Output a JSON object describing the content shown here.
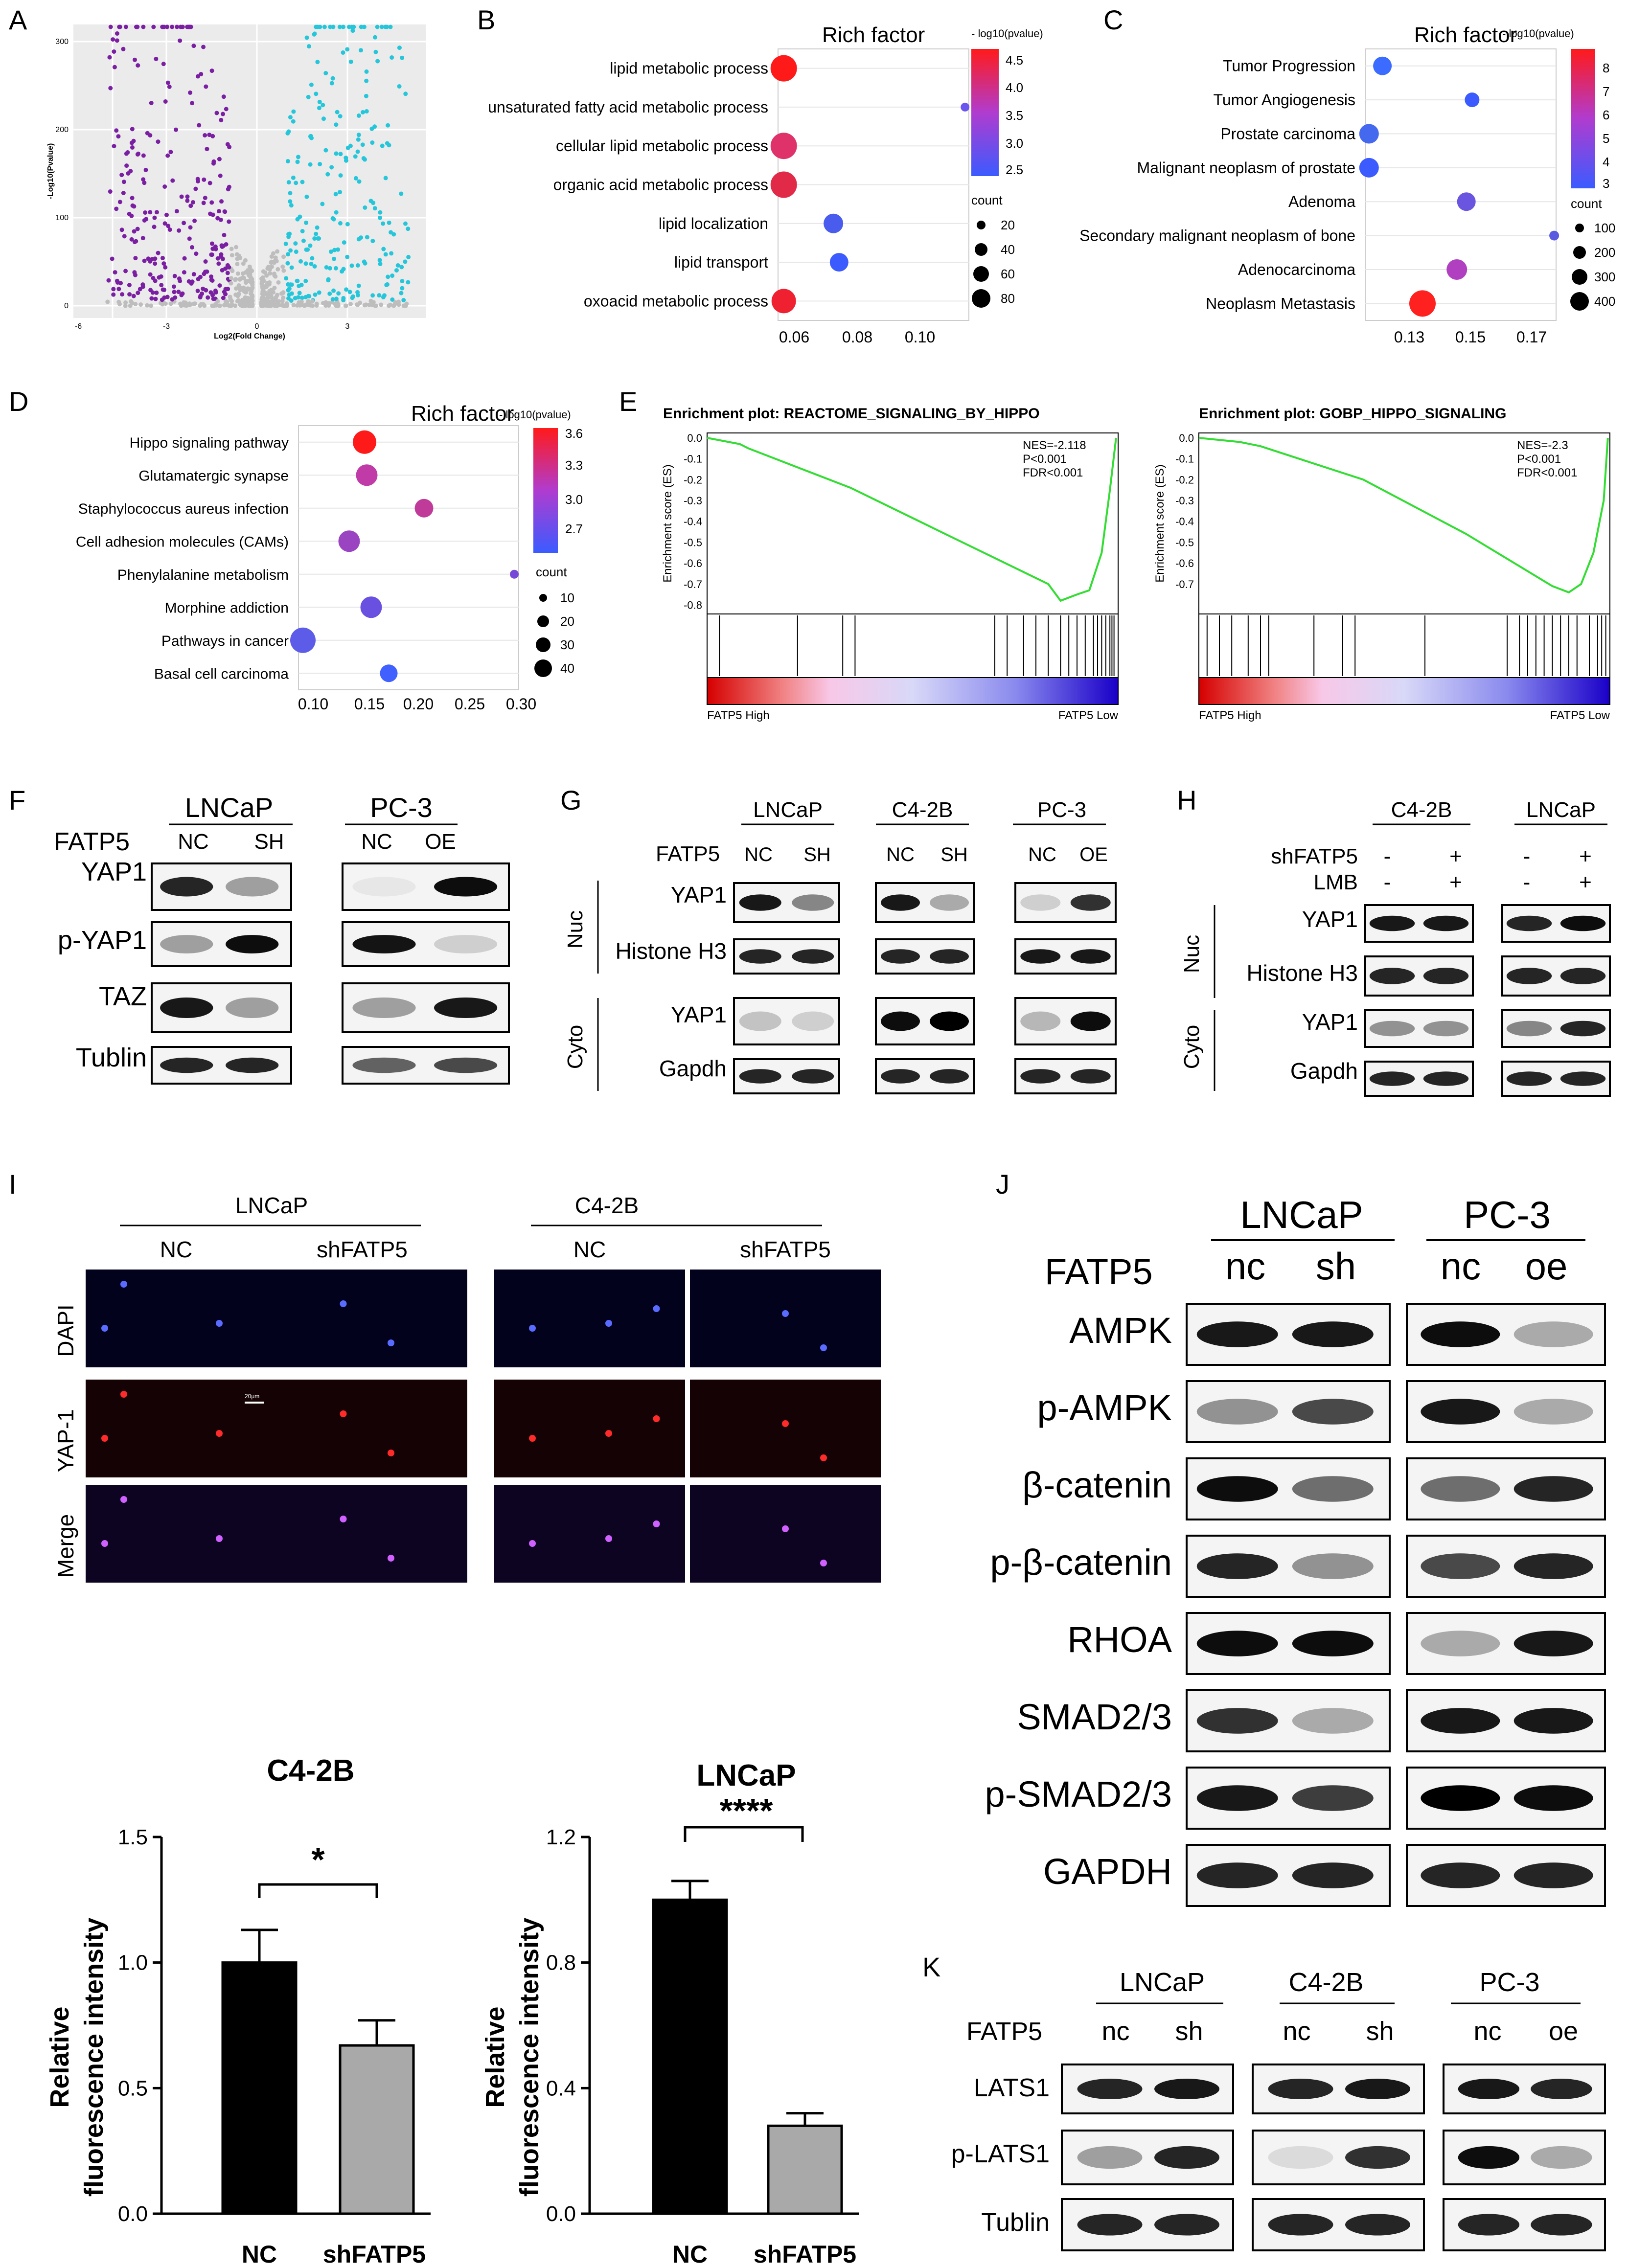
{
  "panel_labels": [
    "A",
    "B",
    "C",
    "D",
    "E",
    "F",
    "G",
    "H",
    "I",
    "J",
    "K"
  ],
  "volcano": {
    "ylabel": "-Log10(Pvalue)",
    "xlabel": "Log2(Fold Change)",
    "yticks": [
      "0",
      "100",
      "200",
      "300"
    ],
    "xticks": [
      "-6",
      "-3",
      "0",
      "3"
    ],
    "colors": {
      "down": "#7b1fa2",
      "up": "#26c6da",
      "ns": "#bdbdbd"
    }
  },
  "rich_factor_label": "Rich factor",
  "pvalue_legend_label": "- log10(pvalue)",
  "count_label": "count",
  "dot_panels": [
    {
      "panel": "B",
      "terms": [
        "lipid metabolic process",
        "unsaturated fatty acid metabolic process",
        "cellular lipid metabolic process",
        "organic acid metabolic process",
        "lipid localization",
        "lipid transport",
        "oxoacid metabolic process"
      ],
      "xticks": [
        "0.06",
        "0.08",
        "0.10"
      ],
      "color_ticks": [
        "4.5",
        "4.0",
        "3.5",
        "3.0",
        "2.5"
      ],
      "size_ticks": [
        "20",
        "40",
        "60",
        "80"
      ]
    },
    {
      "panel": "C",
      "terms": [
        "Tumor Progression",
        "Tumor Angiogenesis",
        "Prostate carcinoma",
        "Malignant neoplasm of prostate",
        "Adenoma",
        "Secondary malignant neoplasm of bone",
        "Adenocarcinoma",
        "Neoplasm Metastasis"
      ],
      "xticks": [
        "0.13",
        "0.15",
        "0.17"
      ],
      "color_ticks": [
        "8",
        "7",
        "6",
        "5",
        "4",
        "3"
      ],
      "size_ticks": [
        "100",
        "200",
        "300",
        "400"
      ]
    },
    {
      "panel": "D",
      "terms": [
        "Hippo signaling pathway",
        "Glutamatergic synapse",
        "Staphylococcus aureus infection",
        "Cell adhesion molecules (CAMs)",
        "Phenylalanine metabolism",
        "Morphine addiction",
        "Pathways in cancer",
        "Basal cell carcinoma"
      ],
      "xticks": [
        "0.10",
        "0.15",
        "0.20",
        "0.25",
        "0.30"
      ],
      "color_ticks": [
        "3.6",
        "3.3",
        "3.0",
        "2.7"
      ],
      "size_ticks": [
        "10",
        "20",
        "30",
        "40"
      ]
    }
  ],
  "gsea": [
    {
      "title": "Enrichment plot: REACTOME_SIGNALING_BY_HIPPO",
      "stats": [
        "NES=-2.118",
        "P<0.001",
        "FDR<0.001"
      ],
      "ylabel": "Enrichment score (ES)",
      "yticks": [
        "0.0",
        "-0.1",
        "-0.2",
        "-0.3",
        "-0.4",
        "-0.5",
        "-0.6",
        "-0.7",
        "-0.8"
      ],
      "left_label": "FATP5 High",
      "right_label": "FATP5 Low"
    },
    {
      "title": "Enrichment plot: GOBP_HIPPO_SIGNALING",
      "stats": [
        "NES=-2.3",
        "P<0.001",
        "FDR<0.001"
      ],
      "ylabel": "Enrichment score (ES)",
      "yticks": [
        "0.0",
        "-0.1",
        "-0.2",
        "-0.3",
        "-0.4",
        "-0.5",
        "-0.6",
        "-0.7"
      ],
      "left_label": "FATP5 High",
      "right_label": "FATP5 Low"
    }
  ],
  "blot_F": {
    "groups": [
      {
        "name": "LNCaP",
        "lanes": [
          "NC",
          "SH"
        ]
      },
      {
        "name": "PC-3",
        "lanes": [
          "NC",
          "OE"
        ]
      }
    ],
    "row_header": "FATP5",
    "proteins": [
      "YAP1",
      "p-YAP1",
      "TAZ",
      "Tublin"
    ]
  },
  "blot_G": {
    "groups": [
      {
        "name": "LNCaP",
        "lanes": [
          "NC",
          "SH"
        ]
      },
      {
        "name": "C4-2B",
        "lanes": [
          "NC",
          "SH"
        ]
      },
      {
        "name": "PC-3",
        "lanes": [
          "NC",
          "OE"
        ]
      }
    ],
    "row_header": "FATP5",
    "fractions": [
      "Nuc",
      "Cyto"
    ],
    "proteins": [
      "YAP1",
      "Histone H3",
      "YAP1",
      "Gapdh"
    ]
  },
  "blot_H": {
    "groups": [
      {
        "name": "C4-2B"
      },
      {
        "name": "LNCaP"
      }
    ],
    "treatments": [
      {
        "name": "shFATP5",
        "values": [
          "-",
          "+",
          "-",
          "+"
        ]
      },
      {
        "name": "LMB",
        "values": [
          "-",
          "+",
          "-",
          "+"
        ]
      }
    ],
    "fractions": [
      "Nuc",
      "Cyto"
    ],
    "proteins": [
      "YAP1",
      "Histone H3",
      "YAP1",
      "Gapdh"
    ]
  },
  "if_panel": {
    "cell_lines": [
      "LNCaP",
      "C4-2B"
    ],
    "conditions": [
      "NC",
      "shFATP5",
      "NC",
      "shFATP5"
    ],
    "channels": [
      "DAPI",
      "YAP-1",
      "Merge"
    ],
    "scale_bar": "20μm"
  },
  "bar_charts": [
    {
      "title": "C4-2B",
      "ylabel_line1": "Relative",
      "ylabel_line2": "fluorescence intensity",
      "yticks": [
        "0.0",
        "0.5",
        "1.0",
        "1.5"
      ],
      "significance": "*"
    },
    {
      "title": "LNCaP",
      "ylabel_line1": "Relative",
      "ylabel_line2": "fluorescence intensity",
      "yticks": [
        "0.0",
        "0.4",
        "0.8",
        "1.2"
      ],
      "significance": "****"
    }
  ],
  "chart_data": [
    {
      "type": "bar",
      "title": "C4-2B",
      "categories": [
        "NC",
        "shFATP5"
      ],
      "values": [
        1.0,
        0.67
      ],
      "errors": [
        0.13,
        0.1
      ],
      "ylim": [
        0,
        1.5
      ],
      "ylabel": "Relative fluorescence intensity",
      "colors": [
        "#000000",
        "#a9a9a9"
      ]
    },
    {
      "type": "bar",
      "title": "LNCaP",
      "categories": [
        "NC",
        "shFATP5"
      ],
      "values": [
        1.0,
        0.28
      ],
      "errors": [
        0.06,
        0.04
      ],
      "ylim": [
        0,
        1.2
      ],
      "ylabel": "Relative fluorescence intensity",
      "colors": [
        "#000000",
        "#a9a9a9"
      ]
    }
  ],
  "blot_J": {
    "groups": [
      {
        "name": "LNCaP",
        "lanes": [
          "nc",
          "sh"
        ]
      },
      {
        "name": "PC-3",
        "lanes": [
          "nc",
          "oe"
        ]
      }
    ],
    "row_header": "FATP5",
    "proteins": [
      "AMPK",
      "p-AMPK",
      "β-catenin",
      "p-β-catenin",
      "RHOA",
      "SMAD2/3",
      "p-SMAD2/3",
      "GAPDH"
    ]
  },
  "blot_K": {
    "groups": [
      {
        "name": "LNCaP",
        "lanes": [
          "nc",
          "sh"
        ]
      },
      {
        "name": "C4-2B",
        "lanes": [
          "nc",
          "sh"
        ]
      },
      {
        "name": "PC-3",
        "lanes": [
          "nc",
          "oe"
        ]
      }
    ],
    "row_header": "FATP5",
    "proteins": [
      "LATS1",
      "p-LATS1",
      "Tublin"
    ]
  },
  "colors": {
    "red": "#ff1a1a",
    "blue": "#3b5bff",
    "purple": "#8a2be2",
    "gsea_line": "#33dd33"
  }
}
